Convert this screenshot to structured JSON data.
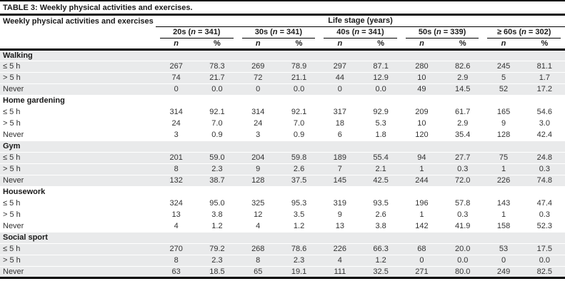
{
  "title": "TABLE 3: Weekly physical activities and exercises.",
  "table": {
    "row_header": "Weekly physical activities and exercises",
    "group_header": "Life stage (years)",
    "columns": [
      "20s (n = 341)",
      "30s (n = 341)",
      "40s (n = 341)",
      "50s (n = 339)",
      "≥ 60s (n = 302)"
    ],
    "subcols": [
      "n",
      "%",
      "n",
      "%",
      "n",
      "%",
      "n",
      "%",
      "n",
      "%"
    ],
    "sections": [
      {
        "name": "Walking",
        "shaded": true,
        "rows": [
          {
            "label": "≤ 5 h",
            "values": [
              "267",
              "78.3",
              "269",
              "78.9",
              "297",
              "87.1",
              "280",
              "82.6",
              "245",
              "81.1"
            ]
          },
          {
            "label": "> 5 h",
            "values": [
              "74",
              "21.7",
              "72",
              "21.1",
              "44",
              "12.9",
              "10",
              "2.9",
              "5",
              "1.7"
            ]
          },
          {
            "label": "Never",
            "values": [
              "0",
              "0.0",
              "0",
              "0.0",
              "0",
              "0.0",
              "49",
              "14.5",
              "52",
              "17.2"
            ]
          }
        ]
      },
      {
        "name": "Home gardening",
        "shaded": false,
        "rows": [
          {
            "label": "≤ 5 h",
            "values": [
              "314",
              "92.1",
              "314",
              "92.1",
              "317",
              "92.9",
              "209",
              "61.7",
              "165",
              "54.6"
            ]
          },
          {
            "label": "> 5 h",
            "values": [
              "24",
              "7.0",
              "24",
              "7.0",
              "18",
              "5.3",
              "10",
              "2.9",
              "9",
              "3.0"
            ]
          },
          {
            "label": "Never",
            "values": [
              "3",
              "0.9",
              "3",
              "0.9",
              "6",
              "1.8",
              "120",
              "35.4",
              "128",
              "42.4"
            ]
          }
        ]
      },
      {
        "name": "Gym",
        "shaded": true,
        "rows": [
          {
            "label": "≤ 5 h",
            "values": [
              "201",
              "59.0",
              "204",
              "59.8",
              "189",
              "55.4",
              "94",
              "27.7",
              "75",
              "24.8"
            ]
          },
          {
            "label": "> 5 h",
            "values": [
              "8",
              "2.3",
              "9",
              "2.6",
              "7",
              "2.1",
              "1",
              "0.3",
              "1",
              "0.3"
            ]
          },
          {
            "label": "Never",
            "values": [
              "132",
              "38.7",
              "128",
              "37.5",
              "145",
              "42.5",
              "244",
              "72.0",
              "226",
              "74.8"
            ]
          }
        ]
      },
      {
        "name": "Housework",
        "shaded": false,
        "rows": [
          {
            "label": "≤ 5 h",
            "values": [
              "324",
              "95.0",
              "325",
              "95.3",
              "319",
              "93.5",
              "196",
              "57.8",
              "143",
              "47.4"
            ]
          },
          {
            "label": "> 5 h",
            "values": [
              "13",
              "3.8",
              "12",
              "3.5",
              "9",
              "2.6",
              "1",
              "0.3",
              "1",
              "0.3"
            ]
          },
          {
            "label": "Never",
            "values": [
              "4",
              "1.2",
              "4",
              "1.2",
              "13",
              "3.8",
              "142",
              "41.9",
              "158",
              "52.3"
            ]
          }
        ]
      },
      {
        "name": "Social sport",
        "shaded": true,
        "rows": [
          {
            "label": "≤ 5 h",
            "values": [
              "270",
              "79.2",
              "268",
              "78.6",
              "226",
              "66.3",
              "68",
              "20.0",
              "53",
              "17.5"
            ]
          },
          {
            "label": "> 5 h",
            "values": [
              "8",
              "2.3",
              "8",
              "2.3",
              "4",
              "1.2",
              "0",
              "0.0",
              "0",
              "0.0"
            ]
          },
          {
            "label": "Never",
            "values": [
              "63",
              "18.5",
              "65",
              "19.1",
              "111",
              "32.5",
              "271",
              "80.0",
              "249",
              "82.5"
            ]
          }
        ]
      }
    ],
    "colors": {
      "shaded_row_bg": "#e9eaeb",
      "rule_color": "#000000",
      "text_color": "#333333"
    }
  }
}
